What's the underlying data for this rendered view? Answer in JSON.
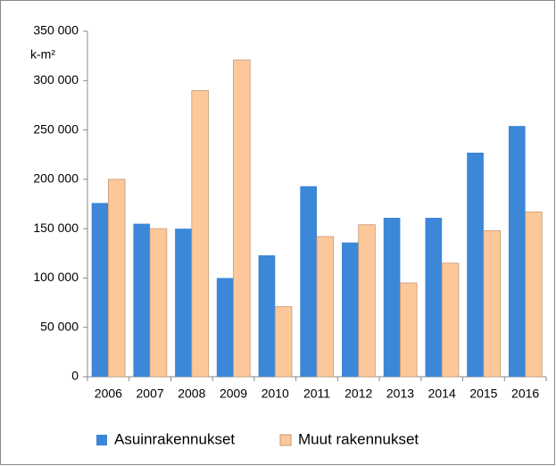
{
  "chart_data": {
    "type": "bar",
    "ylabel": "k-m²",
    "categories": [
      "2006",
      "2007",
      "2008",
      "2009",
      "2010",
      "2011",
      "2012",
      "2013",
      "2014",
      "2015",
      "2016"
    ],
    "series": [
      {
        "name": "Asuinrakennukset",
        "color": "#3c87d8",
        "values": [
          176000,
          155000,
          150000,
          100000,
          123000,
          193000,
          136000,
          161000,
          161000,
          227000,
          254000
        ]
      },
      {
        "name": "Muut rakennukset",
        "color": "#fcc89a",
        "values": [
          200000,
          150000,
          290000,
          321000,
          71000,
          142000,
          154000,
          95000,
          115000,
          148000,
          167000
        ]
      }
    ],
    "ylim": [
      0,
      350000
    ],
    "yticks": [
      {
        "value": 0,
        "label": "0"
      },
      {
        "value": 50000,
        "label": "50 000"
      },
      {
        "value": 100000,
        "label": "100 000"
      },
      {
        "value": 150000,
        "label": "150 000"
      },
      {
        "value": 200000,
        "label": "200 000"
      },
      {
        "value": 250000,
        "label": "250 000"
      },
      {
        "value": 300000,
        "label": "300 000"
      },
      {
        "value": 350000,
        "label": "350 000"
      }
    ],
    "grid": false,
    "legend": "bottom"
  }
}
